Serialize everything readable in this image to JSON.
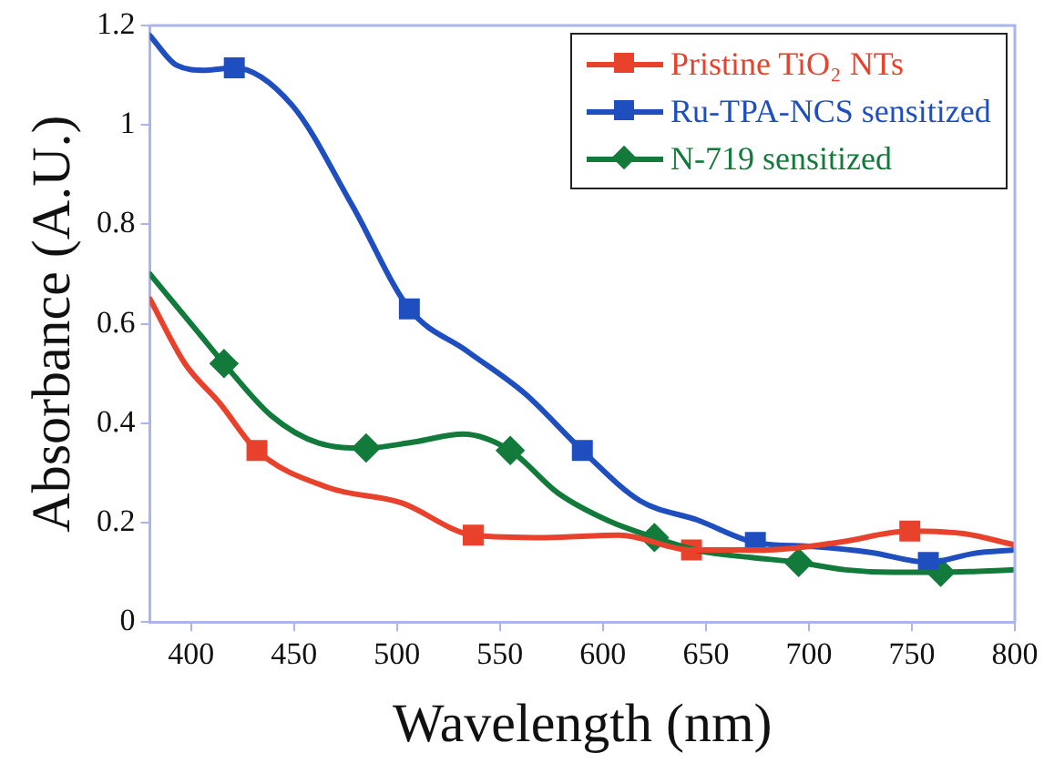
{
  "chart_data": {
    "type": "line",
    "xlabel": "Wavelength (nm)",
    "ylabel": "Absorbance (A.U.)",
    "xlim": [
      380,
      800
    ],
    "xticks": [
      400,
      450,
      500,
      550,
      600,
      650,
      700,
      750,
      800
    ],
    "ylim": [
      0,
      1.2
    ],
    "yticks": [
      0,
      0.2,
      0.4,
      0.6,
      0.8,
      1,
      1.2
    ],
    "grid": false,
    "legend": "top right",
    "marker": "none",
    "series": [
      {
        "name": "Pristine TiO₂ NTs",
        "color": "#e8412c",
        "x": [
          380,
          397,
          414,
          432,
          467,
          502,
          537,
          572,
          608,
          643,
          678,
          714,
          749,
          775,
          800
        ],
        "values": [
          0.65,
          0.52,
          0.44,
          0.345,
          0.27,
          0.24,
          0.175,
          0.17,
          0.175,
          0.145,
          0.145,
          0.16,
          0.183,
          0.178,
          0.155
        ]
      },
      {
        "name": "Ru-TPA-NCS sensitized",
        "color": "#1f4fbf",
        "x": [
          380,
          393,
          407,
          421,
          449,
          478,
          506,
          534,
          562,
          590,
          618,
          646,
          674,
          702,
          730,
          758,
          780,
          800
        ],
        "values": [
          1.18,
          1.12,
          1.11,
          1.115,
          1.04,
          0.84,
          0.63,
          0.545,
          0.46,
          0.345,
          0.244,
          0.205,
          0.16,
          0.152,
          0.14,
          0.12,
          0.138,
          0.145
        ]
      },
      {
        "name": "N-719 sensitized",
        "color": "#127a3a",
        "x": [
          380,
          392,
          404,
          416,
          439,
          462,
          485,
          508,
          532,
          555,
          578,
          602,
          625,
          648,
          672,
          695,
          718,
          741,
          764,
          782,
          800
        ],
        "values": [
          0.7,
          0.64,
          0.58,
          0.52,
          0.415,
          0.36,
          0.35,
          0.362,
          0.378,
          0.345,
          0.26,
          0.205,
          0.17,
          0.142,
          0.13,
          0.12,
          0.105,
          0.1,
          0.1,
          0.102,
          0.105
        ]
      },
      {
        "type": "scatter",
        "color": "#e8412c",
        "marker": "square",
        "x": [
          432,
          537,
          643,
          749
        ],
        "values": [
          0.345,
          0.175,
          0.145,
          0.183
        ]
      },
      {
        "type": "scatter",
        "color": "#1f4fbf",
        "marker": "square",
        "x": [
          421,
          506,
          590,
          674,
          758
        ],
        "values": [
          1.115,
          0.63,
          0.345,
          0.16,
          0.12
        ]
      },
      {
        "type": "scatter",
        "color": "#127a3a",
        "marker": "diamond",
        "x": [
          416,
          485,
          555,
          625,
          695,
          764
        ],
        "values": [
          0.52,
          0.35,
          0.345,
          0.17,
          0.12,
          0.1
        ]
      }
    ]
  }
}
